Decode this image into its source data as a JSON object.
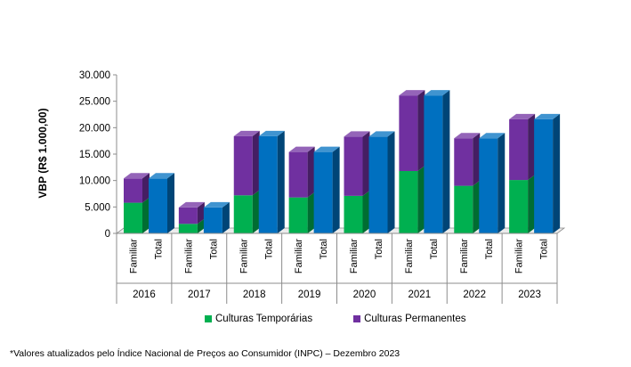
{
  "chart_data": {
    "type": "bar",
    "stacked": true,
    "three_d": true,
    "ylabel": "VBP (R$ 1.000,00)",
    "ylim": [
      0,
      30000
    ],
    "yticks": [
      "0",
      "5.000",
      "10.000",
      "15.000",
      "20.000",
      "25.000",
      "30.000"
    ],
    "groups": [
      "2016",
      "2017",
      "2018",
      "2019",
      "2020",
      "2021",
      "2022",
      "2023"
    ],
    "subcategories": [
      "Familiar",
      "Total"
    ],
    "grid": false,
    "legend_position": "bottom",
    "series": [
      {
        "name": "Culturas Temporárias",
        "color": "#00b050",
        "values": [
          5800,
          1800,
          7200,
          6800,
          7100,
          11800,
          9000,
          10100
        ]
      },
      {
        "name": "Culturas Permanentes",
        "color": "#7030a0",
        "values": [
          4600,
          3100,
          11200,
          8600,
          11200,
          14300,
          9000,
          11500
        ]
      }
    ],
    "total_series": {
      "subcategory": "Total",
      "color": "#0070c0",
      "values": [
        10400,
        4900,
        18400,
        15400,
        18300,
        26100,
        18000,
        21600
      ]
    }
  },
  "footnote": "*Valores atualizados pelo Índice Nacional de Preços ao Consumidor (INPC) – Dezembro 2023"
}
